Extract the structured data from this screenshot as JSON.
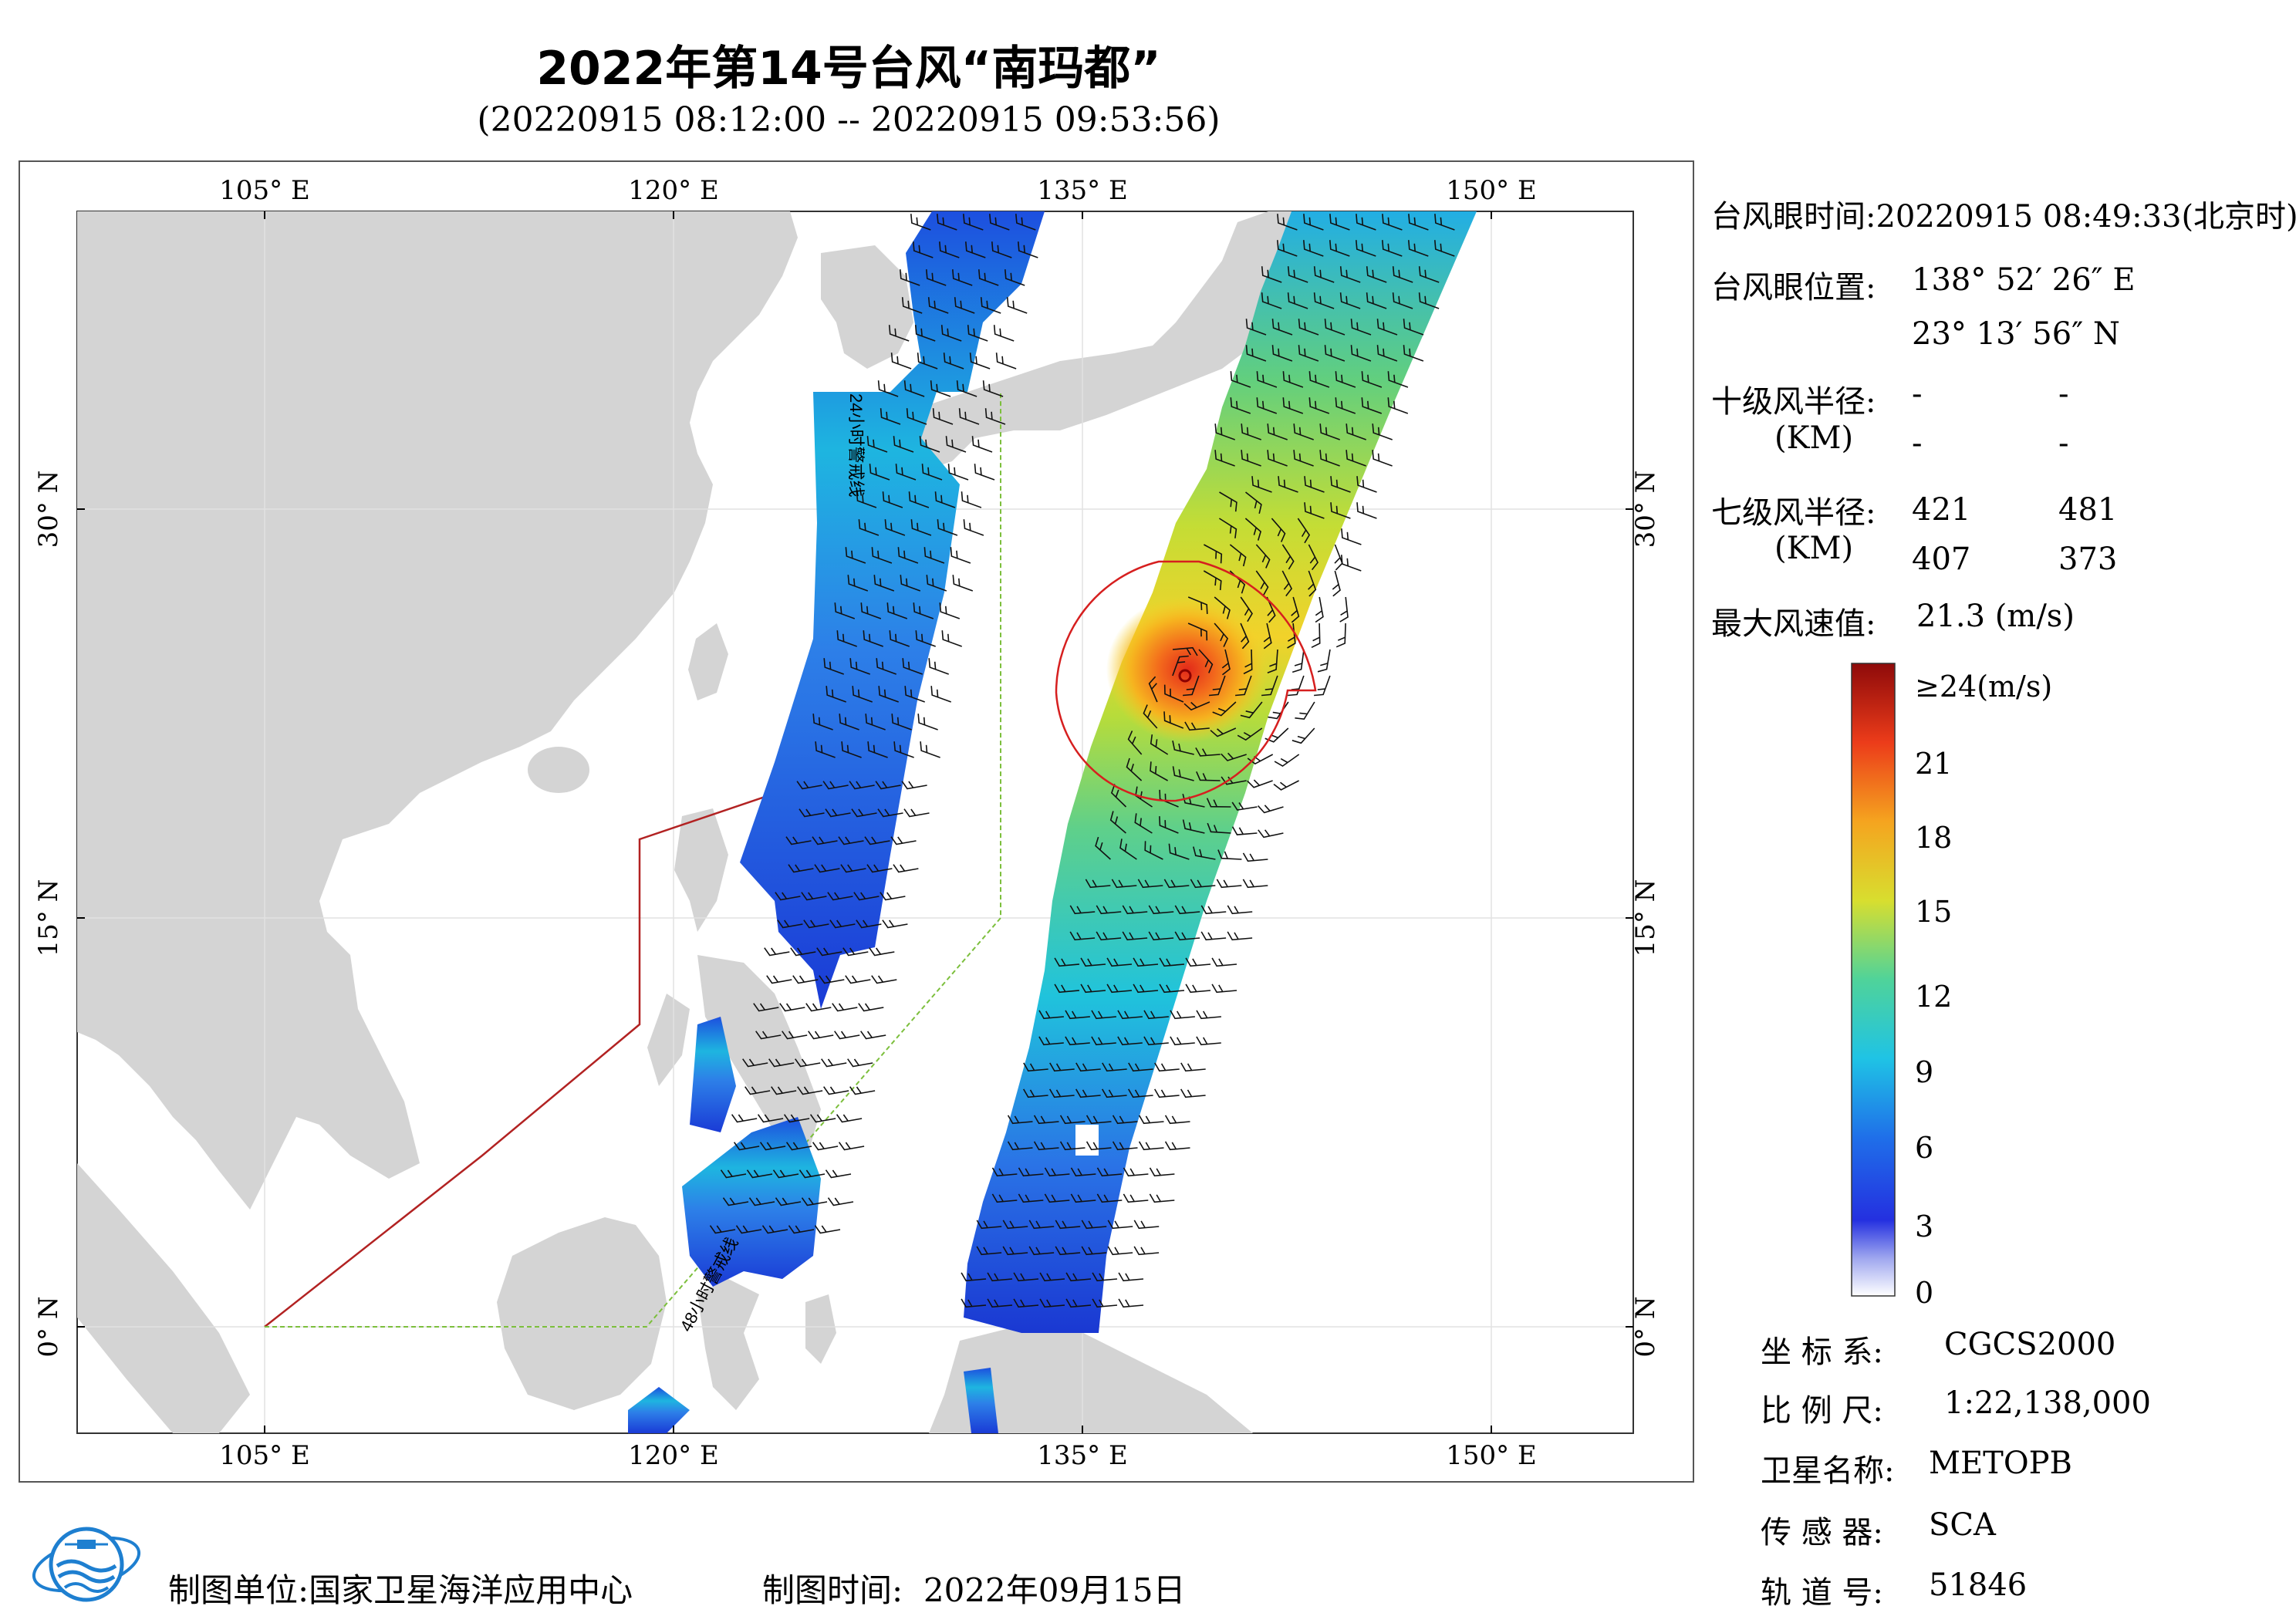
{
  "title": "2022年第14号台风“南玛都”",
  "subtitle": "(20220915 08:12:00 -- 20220915 09:53:56)",
  "map": {
    "lon_labels_top": [
      "105° E",
      "120° E",
      "135° E",
      "150° E"
    ],
    "lon_labels_bottom": [
      "105° E",
      "120° E",
      "135° E",
      "150° E"
    ],
    "lat_labels_left": [
      "30° N",
      "15° N",
      "0° N"
    ],
    "lat_labels_right": [
      "30° N",
      "15° N",
      "0° N"
    ],
    "annotation_north": "24小时警戒线",
    "annotation_south": "48小时警戒线",
    "colors": {
      "land": "#d4d4d4",
      "ocean": "#ffffff",
      "warning24": "#b22222",
      "warning48": "#7cbf3c",
      "circle": "#d61f1f"
    }
  },
  "info": {
    "eye_time_label": "台风眼时间:",
    "eye_time_value": "20220915 08:49:33(北京时)",
    "eye_pos_label": "台风眼位置:",
    "eye_lon": "138° 52′ 26″ E",
    "eye_lat": "23° 13′ 56″ N",
    "r10_label": "十级风半径:",
    "r10_unit": "(KM)",
    "r10_values": [
      "-",
      "-",
      "-",
      "-"
    ],
    "r7_label": "七级风半径:",
    "r7_unit": "(KM)",
    "r7_values": [
      "421",
      "481",
      "407",
      "373"
    ],
    "max_wind_label": "最大风速值:",
    "max_wind_value": "21.3 (m/s)"
  },
  "colorbar": {
    "labels": [
      "≥24(m/s)",
      "21",
      "18",
      "15",
      "12",
      "9",
      "6",
      "3",
      "0"
    ]
  },
  "meta": {
    "crs_label": "坐 标 系:",
    "crs_value": "CGCS2000",
    "scale_label": "比 例 尺:",
    "scale_value": "1:22,138,000",
    "satellite_label": "卫星名称:",
    "satellite_value": "METOPB",
    "sensor_label": "传 感 器:",
    "sensor_value": "SCA",
    "orbit_label": "轨 道 号:",
    "orbit_value": "51846"
  },
  "footer": {
    "unit_label": "制图单位:",
    "unit_value": "国家卫星海洋应用中心",
    "date_label": "制图时间:",
    "date_value": "2022年09月15日"
  },
  "typhoon_eye": {
    "lon": 138.87,
    "lat": 23.23
  }
}
